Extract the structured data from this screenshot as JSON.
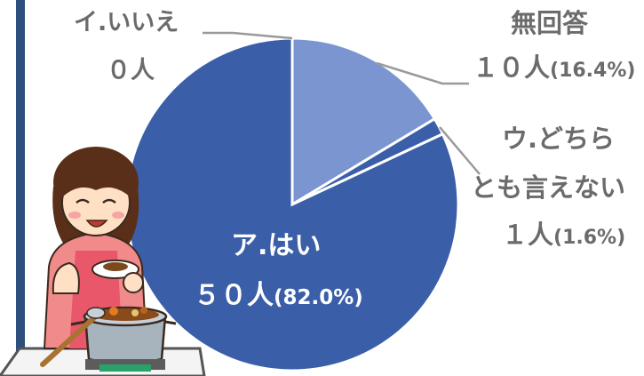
{
  "chart_data": {
    "type": "pie",
    "slices": [
      {
        "key": "yes",
        "label": "ア.はい",
        "count_label": "５０人",
        "pct_label": "(82.0%)",
        "value": 50,
        "percent": 82.0,
        "color": "#3a5ea8"
      },
      {
        "key": "unsure",
        "label": "ウ.どちら とも言えない",
        "label_line1": "ウ.どちら",
        "label_line2": "とも言えない",
        "count_label": "１人",
        "pct_label": "(1.6%)",
        "value": 1,
        "percent": 1.6,
        "color": "#3a5ea8"
      },
      {
        "key": "noanswer",
        "label": "無回答",
        "count_label": "１０人",
        "pct_label": "(16.4%)",
        "value": 10,
        "percent": 16.4,
        "color": "#7a95d0"
      },
      {
        "key": "no",
        "label": "イ.いいえ",
        "count_label": "０人",
        "pct_label": "",
        "value": 0,
        "percent": 0.0,
        "color": "#3a5ea8"
      }
    ],
    "colors": {
      "main": "#3a5ea8",
      "light": "#7a95d0",
      "separator": "#ffffff",
      "leader": "#9a9a9a",
      "label_text": "#6b6b6b"
    }
  },
  "illustration": {
    "subject": "woman-tasting-curry-icon"
  }
}
